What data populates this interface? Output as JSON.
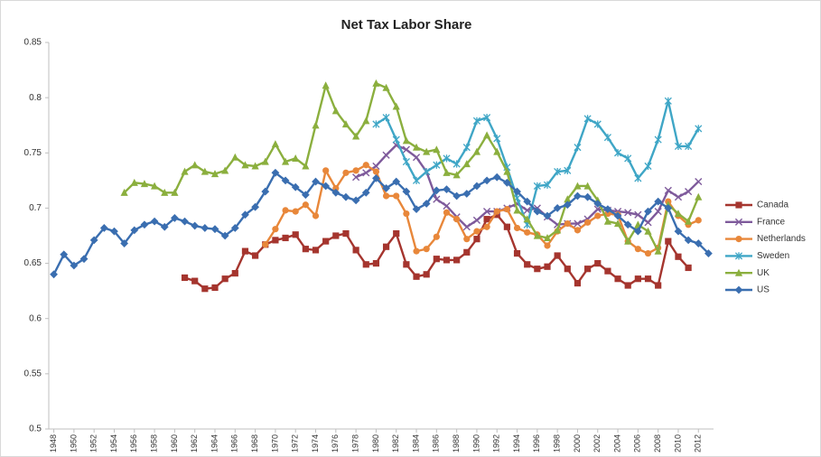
{
  "chart_data": {
    "type": "line",
    "title": "Net Tax Labor Share",
    "x": [
      1948,
      1949,
      1950,
      1951,
      1952,
      1953,
      1954,
      1955,
      1956,
      1957,
      1958,
      1959,
      1960,
      1961,
      1962,
      1963,
      1964,
      1965,
      1966,
      1967,
      1968,
      1969,
      1970,
      1971,
      1972,
      1973,
      1974,
      1975,
      1976,
      1977,
      1978,
      1979,
      1980,
      1981,
      1982,
      1983,
      1984,
      1985,
      1986,
      1987,
      1988,
      1989,
      1990,
      1991,
      1992,
      1993,
      1994,
      1995,
      1996,
      1997,
      1998,
      1999,
      2000,
      2001,
      2002,
      2003,
      2004,
      2005,
      2006,
      2007,
      2008,
      2009,
      2010,
      2011,
      2012,
      2013
    ],
    "xlim": [
      1947.5,
      2013.5
    ],
    "xticks": [
      1948,
      1950,
      1952,
      1954,
      1956,
      1958,
      1960,
      1962,
      1964,
      1966,
      1968,
      1970,
      1972,
      1974,
      1976,
      1978,
      1980,
      1982,
      1984,
      1986,
      1988,
      1990,
      1992,
      1994,
      1996,
      1998,
      2000,
      2002,
      2004,
      2006,
      2008,
      2010,
      2012
    ],
    "ylim": [
      0.5,
      0.85
    ],
    "yticks": [
      0.5,
      0.55,
      0.6,
      0.65,
      0.7,
      0.75,
      0.8,
      0.85
    ],
    "legend": "right",
    "series": [
      {
        "name": "Canada",
        "color": "#a5352e",
        "marker": "square",
        "values": [
          null,
          null,
          null,
          null,
          null,
          null,
          null,
          null,
          null,
          null,
          null,
          null,
          null,
          0.637,
          0.634,
          0.627,
          0.628,
          0.636,
          0.641,
          0.661,
          0.657,
          0.667,
          0.671,
          0.673,
          0.676,
          0.663,
          0.662,
          0.67,
          0.675,
          0.677,
          0.662,
          0.649,
          0.65,
          0.665,
          0.677,
          0.649,
          0.638,
          0.64,
          0.654,
          0.653,
          0.653,
          0.66,
          0.672,
          0.69,
          0.694,
          0.683,
          0.659,
          0.649,
          0.645,
          0.647,
          0.657,
          0.645,
          0.632,
          0.645,
          0.65,
          0.643,
          0.636,
          0.63,
          0.636,
          0.636,
          0.63,
          0.67,
          0.656,
          0.646,
          null,
          null
        ]
      },
      {
        "name": "France",
        "color": "#7e5a9b",
        "marker": "x",
        "values": [
          null,
          null,
          null,
          null,
          null,
          null,
          null,
          null,
          null,
          null,
          null,
          null,
          null,
          null,
          null,
          null,
          null,
          null,
          null,
          null,
          null,
          null,
          null,
          null,
          null,
          null,
          null,
          null,
          null,
          null,
          0.728,
          0.732,
          0.738,
          0.748,
          0.757,
          0.753,
          0.746,
          0.733,
          0.708,
          0.702,
          0.692,
          0.683,
          0.689,
          0.697,
          0.697,
          0.7,
          0.704,
          0.698,
          0.7,
          0.692,
          0.685,
          0.686,
          0.686,
          0.69,
          0.699,
          0.698,
          0.697,
          0.696,
          0.694,
          0.687,
          0.697,
          0.716,
          0.71,
          0.715,
          0.724,
          null
        ]
      },
      {
        "name": "Netherlands",
        "color": "#e8873a",
        "marker": "circle",
        "values": [
          null,
          null,
          null,
          null,
          null,
          null,
          null,
          null,
          null,
          null,
          null,
          null,
          null,
          null,
          null,
          null,
          null,
          null,
          null,
          null,
          null,
          0.667,
          0.681,
          0.698,
          0.697,
          0.703,
          0.693,
          0.734,
          0.718,
          0.732,
          0.734,
          0.739,
          0.733,
          0.711,
          0.711,
          0.695,
          0.661,
          0.663,
          0.674,
          0.696,
          0.69,
          0.672,
          0.679,
          0.683,
          0.697,
          0.699,
          0.682,
          0.678,
          0.676,
          0.666,
          0.679,
          0.686,
          0.68,
          0.687,
          0.693,
          0.695,
          0.694,
          0.67,
          0.663,
          0.659,
          0.664,
          0.706,
          0.693,
          0.685,
          0.689,
          null
        ]
      },
      {
        "name": "Sweden",
        "color": "#3fa6c6",
        "marker": "star",
        "values": [
          null,
          null,
          null,
          null,
          null,
          null,
          null,
          null,
          null,
          null,
          null,
          null,
          null,
          null,
          null,
          null,
          null,
          null,
          null,
          null,
          null,
          null,
          null,
          null,
          null,
          null,
          null,
          null,
          null,
          null,
          null,
          null,
          0.776,
          0.782,
          0.762,
          0.742,
          0.725,
          0.733,
          0.739,
          0.745,
          0.74,
          0.755,
          0.779,
          0.782,
          0.763,
          0.737,
          0.709,
          0.685,
          0.72,
          0.721,
          0.733,
          0.734,
          0.755,
          0.781,
          0.776,
          0.764,
          0.75,
          0.745,
          0.727,
          0.738,
          0.762,
          0.797,
          0.756,
          0.756,
          0.772,
          null
        ]
      },
      {
        "name": "UK",
        "color": "#8baf3e",
        "marker": "triangle",
        "values": [
          null,
          null,
          null,
          null,
          null,
          null,
          null,
          0.714,
          0.723,
          0.722,
          0.72,
          0.714,
          0.714,
          0.733,
          0.739,
          0.733,
          0.731,
          0.734,
          0.746,
          0.739,
          0.738,
          0.742,
          0.758,
          0.742,
          0.745,
          0.738,
          0.775,
          0.811,
          0.788,
          0.776,
          0.765,
          0.779,
          0.813,
          0.809,
          0.792,
          0.761,
          0.755,
          0.751,
          0.753,
          0.732,
          0.73,
          0.74,
          0.751,
          0.766,
          0.751,
          0.733,
          0.698,
          0.69,
          0.675,
          0.673,
          0.68,
          0.708,
          0.72,
          0.72,
          0.707,
          0.688,
          0.686,
          0.67,
          0.685,
          0.679,
          0.661,
          0.703,
          0.695,
          0.688,
          0.71,
          null
        ]
      },
      {
        "name": "US",
        "color": "#3a6eb0",
        "marker": "diamond",
        "values": [
          0.64,
          0.658,
          0.648,
          0.654,
          0.671,
          0.682,
          0.679,
          0.668,
          0.68,
          0.685,
          0.688,
          0.683,
          0.691,
          0.688,
          0.684,
          0.682,
          0.681,
          0.675,
          0.682,
          0.694,
          0.701,
          0.715,
          0.732,
          0.725,
          0.719,
          0.712,
          0.724,
          0.72,
          0.714,
          0.71,
          0.707,
          0.714,
          0.727,
          0.718,
          0.724,
          0.715,
          0.699,
          0.704,
          0.716,
          0.717,
          0.711,
          0.713,
          0.72,
          0.725,
          0.728,
          0.723,
          0.715,
          0.706,
          0.697,
          0.693,
          0.7,
          0.703,
          0.711,
          0.71,
          0.704,
          0.699,
          0.693,
          0.685,
          0.679,
          0.697,
          0.706,
          0.7,
          0.679,
          0.671,
          0.668,
          0.659
        ]
      }
    ]
  }
}
